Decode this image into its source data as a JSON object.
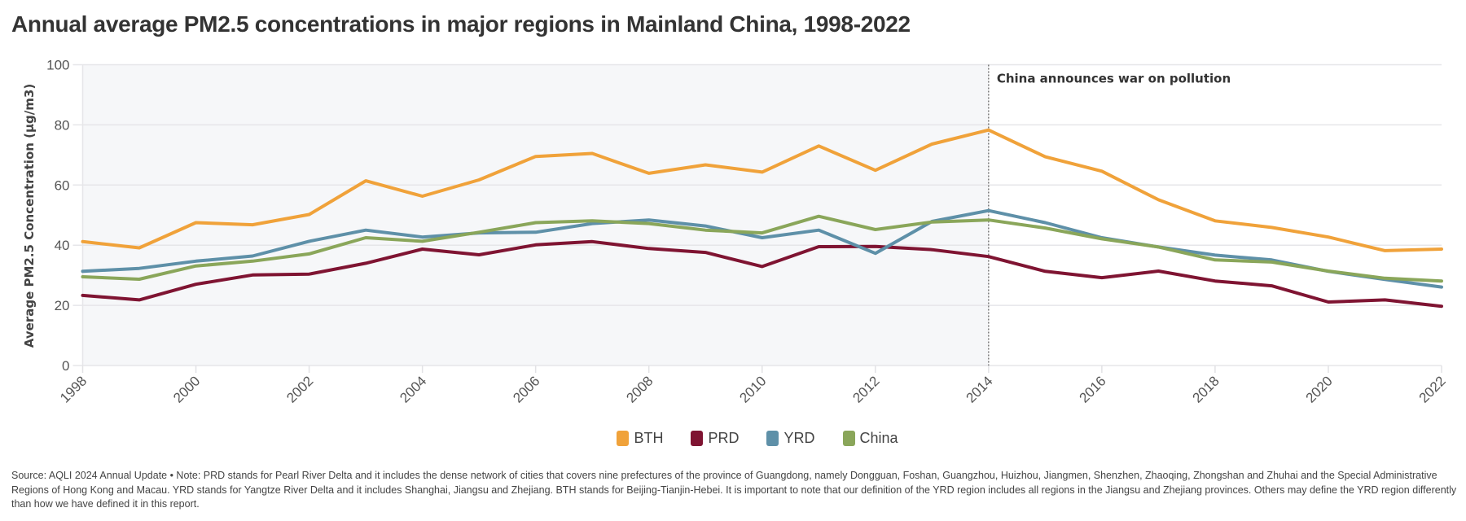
{
  "title": "Annual average PM2.5 concentrations in major regions in Mainland China, 1998-2022",
  "chart_data": {
    "type": "line",
    "title": "Annual average PM2.5 concentrations in major regions in Mainland China, 1998-2022",
    "xlabel": "",
    "ylabel": "Average PM2.5 Concentration (µg/m3)",
    "x": [
      1998,
      1999,
      2000,
      2001,
      2002,
      2003,
      2004,
      2005,
      2006,
      2007,
      2008,
      2009,
      2010,
      2011,
      2012,
      2013,
      2014,
      2015,
      2016,
      2017,
      2018,
      2019,
      2020,
      2021,
      2022
    ],
    "xlim": [
      1998,
      2022
    ],
    "ylim": [
      0,
      100
    ],
    "x_ticks": [
      "1998",
      "2000",
      "2002",
      "2004",
      "2006",
      "2008",
      "2010",
      "2012",
      "2014",
      "2016",
      "2018",
      "2020",
      "2022"
    ],
    "y_ticks": [
      "0",
      "20",
      "40",
      "60",
      "80",
      "100"
    ],
    "grid": true,
    "legend_position": "bottom",
    "series": [
      {
        "name": "BTH",
        "color": "#F0A23A",
        "values": [
          41.2,
          39.1,
          47.5,
          46.8,
          50.2,
          61.4,
          56.3,
          61.7,
          69.5,
          70.5,
          63.9,
          66.7,
          64.3,
          73.0,
          64.9,
          73.6,
          78.3,
          69.4,
          64.6,
          55.1,
          48.1,
          45.9,
          42.7,
          38.2,
          38.7
        ]
      },
      {
        "name": "PRD",
        "color": "#7F1432",
        "values": [
          23.3,
          21.8,
          27.0,
          30.1,
          30.4,
          34.0,
          38.7,
          36.8,
          40.1,
          41.2,
          38.9,
          37.6,
          32.9,
          39.5,
          39.6,
          38.5,
          36.2,
          31.3,
          29.2,
          31.4,
          28.1,
          26.5,
          21.1,
          21.8,
          19.7
        ]
      },
      {
        "name": "YRD",
        "color": "#5E90A8",
        "values": [
          31.3,
          32.3,
          34.7,
          36.4,
          41.3,
          45.0,
          42.7,
          44.1,
          44.3,
          47.2,
          48.4,
          46.4,
          42.5,
          45.0,
          37.3,
          47.9,
          51.5,
          47.5,
          42.5,
          39.4,
          36.7,
          35.1,
          31.3,
          28.6,
          26.1
        ]
      },
      {
        "name": "China",
        "color": "#8AA65A",
        "values": [
          29.5,
          28.7,
          33.1,
          34.7,
          37.1,
          42.5,
          41.3,
          44.3,
          47.5,
          48.1,
          47.2,
          45.0,
          44.1,
          49.6,
          45.2,
          47.7,
          48.4,
          45.7,
          42.1,
          39.4,
          35.1,
          34.4,
          31.4,
          29.0,
          28.1
        ]
      }
    ],
    "annotations": [
      {
        "x": 2014,
        "label": "China announces war on pollution",
        "style": "dotted vertical line; period before 2014 shaded"
      }
    ],
    "shaded_range": [
      1998,
      2014
    ]
  },
  "legend": [
    {
      "label": "BTH",
      "color": "#F0A23A"
    },
    {
      "label": "PRD",
      "color": "#7F1432"
    },
    {
      "label": "YRD",
      "color": "#5E90A8"
    },
    {
      "label": "China",
      "color": "#8AA65A"
    }
  ],
  "footnote": "Source: AQLI 2024 Annual Update • Note: PRD stands for Pearl River Delta and it includes the dense network of cities that covers nine prefectures of the province of Guangdong, namely Dongguan, Foshan, Guangzhou, Huizhou, Jiangmen, Shenzhen, Zhaoqing, Zhongshan and Zhuhai and the Special Administrative Regions of Hong Kong and Macau. YRD stands for Yangtze River Delta and it includes Shanghai, Jiangsu and Zhejiang. BTH stands for Beijing-Tianjin-Hebei. It is important to note that our definition of the YRD region includes all regions in the Jiangsu and Zhejiang provinces. Others may define the YRD region differently than how we have defined it in this report."
}
